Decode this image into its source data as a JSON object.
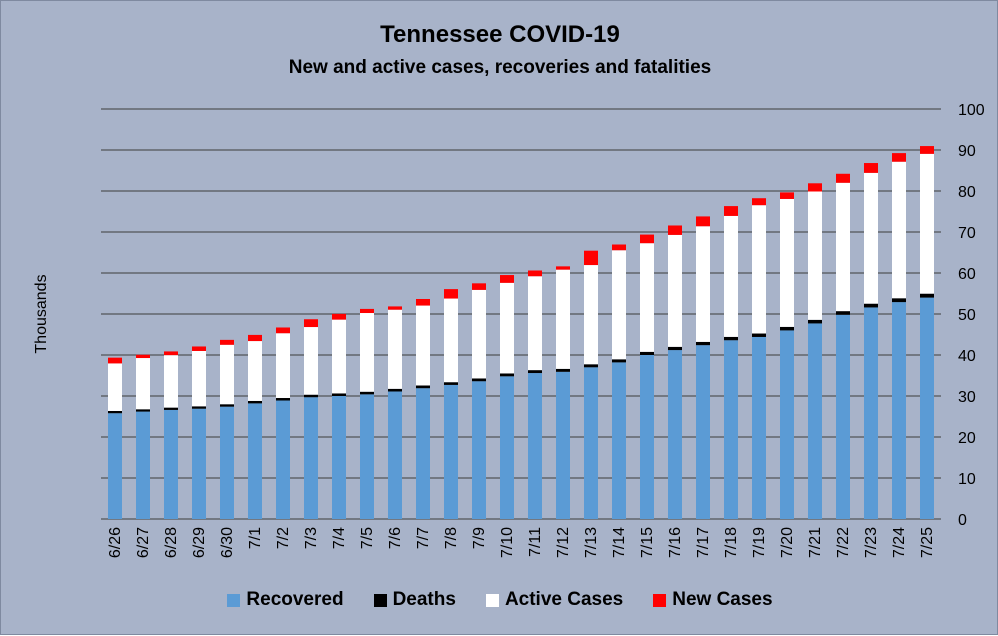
{
  "chart_data": {
    "type": "bar",
    "stacked": true,
    "title": "Tennessee COVID-19",
    "subtitle": "New and active cases, recoveries and fatalities",
    "ylabel": "Thousands",
    "ylim": [
      0,
      100
    ],
    "yticks": [
      0,
      10,
      20,
      30,
      40,
      50,
      60,
      70,
      80,
      90,
      100
    ],
    "y_axis_side": "right",
    "grid": true,
    "legend_position": "bottom",
    "categories": [
      "6/26",
      "6/27",
      "6/28",
      "6/29",
      "6/30",
      "7/1",
      "7/2",
      "7/3",
      "7/4",
      "7/5",
      "7/6",
      "7/7",
      "7/8",
      "7/9",
      "7/10",
      "7/11",
      "7/12",
      "7/13",
      "7/14",
      "7/15",
      "7/16",
      "7/17",
      "7/18",
      "7/19",
      "7/20",
      "7/21",
      "7/22",
      "7/23",
      "7/24",
      "7/25"
    ],
    "series": [
      {
        "name": "Recovered",
        "color": "#5b9bd5",
        "values": [
          25.8,
          26.2,
          26.6,
          26.9,
          27.4,
          28.2,
          28.9,
          29.7,
          30.0,
          30.4,
          31.1,
          31.9,
          32.7,
          33.6,
          34.8,
          35.6,
          35.9,
          37.0,
          38.2,
          40.0,
          41.2,
          42.4,
          43.6,
          44.4,
          46.0,
          47.7,
          49.8,
          51.6,
          52.9,
          54.0
        ]
      },
      {
        "name": "Deaths",
        "color": "#000000",
        "values": [
          0.55,
          0.56,
          0.57,
          0.58,
          0.59,
          0.6,
          0.61,
          0.62,
          0.63,
          0.64,
          0.65,
          0.66,
          0.67,
          0.68,
          0.7,
          0.71,
          0.72,
          0.74,
          0.75,
          0.77,
          0.79,
          0.8,
          0.82,
          0.84,
          0.86,
          0.88,
          0.9,
          0.92,
          0.94,
          0.96
        ]
      },
      {
        "name": "Active Cases",
        "color": "#ffffff",
        "values": [
          11.6,
          12.5,
          12.8,
          13.5,
          14.5,
          14.6,
          15.8,
          16.5,
          18.0,
          19.2,
          19.3,
          19.5,
          20.4,
          21.6,
          22.1,
          22.9,
          24.2,
          24.2,
          26.6,
          26.5,
          27.3,
          28.2,
          29.5,
          31.3,
          31.2,
          31.3,
          31.3,
          31.9,
          33.3,
          34.1
        ]
      },
      {
        "name": "New Cases",
        "color": "#ff0000",
        "values": [
          1.4,
          0.8,
          0.9,
          1.1,
          1.2,
          1.5,
          1.4,
          1.9,
          1.4,
          1.0,
          0.8,
          1.6,
          2.3,
          1.6,
          1.9,
          1.4,
          0.8,
          3.5,
          1.4,
          2.1,
          2.3,
          2.4,
          2.4,
          1.7,
          1.6,
          2.0,
          2.2,
          2.4,
          2.1,
          1.9
        ]
      }
    ]
  }
}
